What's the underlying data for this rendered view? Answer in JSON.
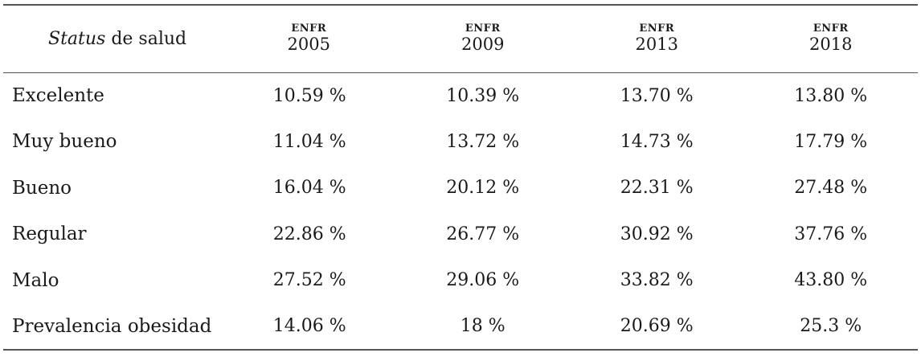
{
  "table": {
    "header": {
      "status_italic": "Status",
      "status_rest": " de salud",
      "years": [
        {
          "source": "ENFR",
          "year": "2005"
        },
        {
          "source": "ENFR",
          "year": "2009"
        },
        {
          "source": "ENFR",
          "year": "2013"
        },
        {
          "source": "ENFR",
          "year": "2018"
        }
      ]
    },
    "rows": [
      {
        "label": "Excelente",
        "values": [
          "10.59 %",
          "10.39 %",
          "13.70 %",
          "13.80 %"
        ]
      },
      {
        "label": "Muy bueno",
        "values": [
          "11.04 %",
          "13.72 %",
          "14.73 %",
          "17.79 %"
        ]
      },
      {
        "label": "Bueno",
        "values": [
          "16.04 %",
          "20.12 %",
          "22.31 %",
          "27.48 %"
        ]
      },
      {
        "label": "Regular",
        "values": [
          "22.86 %",
          "26.77 %",
          "30.92 %",
          "37.76 %"
        ]
      },
      {
        "label": "Malo",
        "values": [
          "27.52 %",
          "29.06 %",
          "33.82 %",
          "43.80 %"
        ]
      },
      {
        "label": "Prevalencia obesidad",
        "values": [
          "14.06 %",
          "18 %",
          "20.69 %",
          "25.3 %"
        ]
      }
    ]
  }
}
